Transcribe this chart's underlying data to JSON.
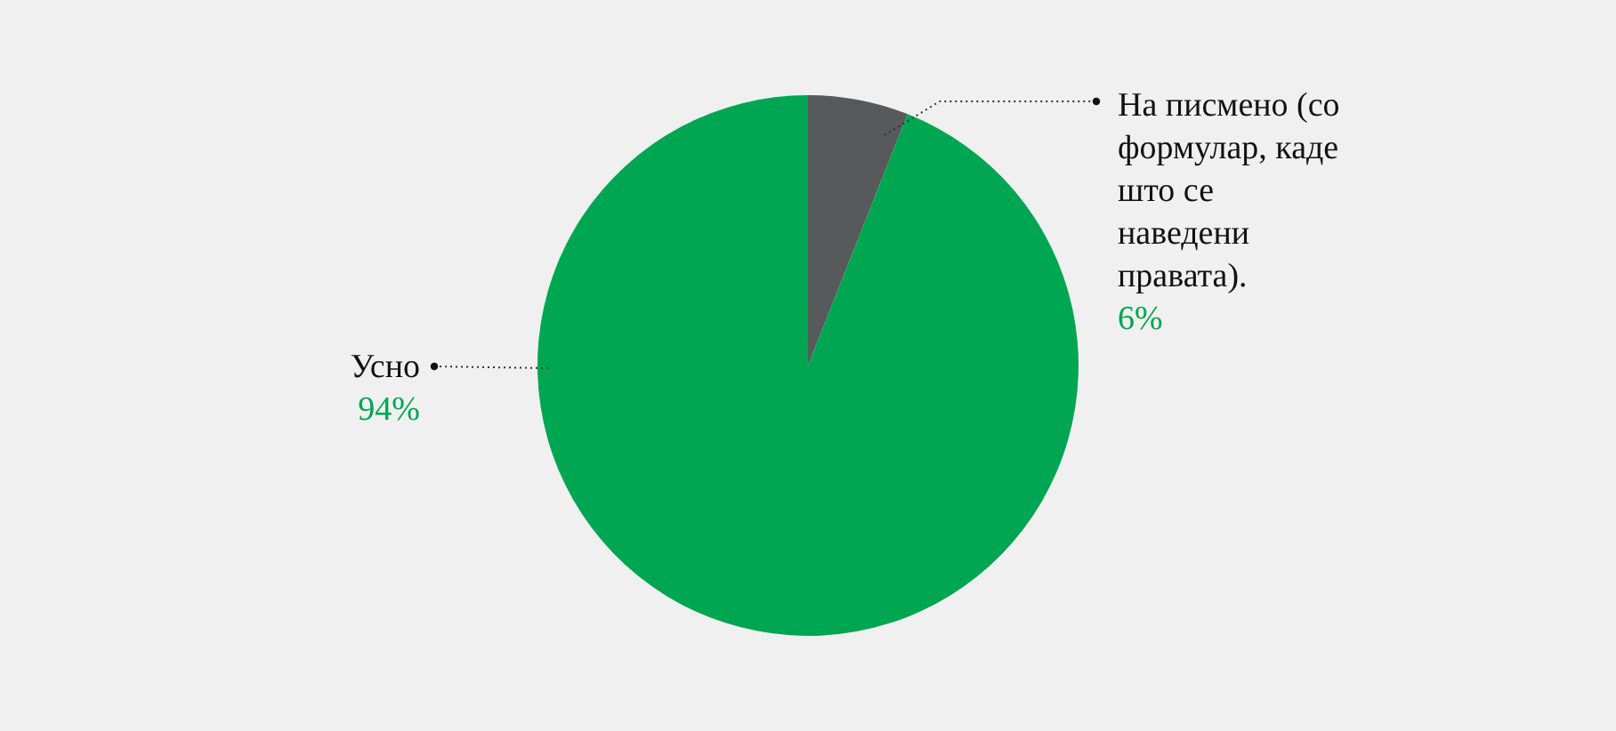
{
  "chart_data": {
    "type": "pie",
    "categories": [
      "На писмено (со формулар, каде што се наведени правата).",
      "Усно"
    ],
    "values": [
      6,
      94
    ],
    "colors": [
      "#58595b",
      "#00a651"
    ],
    "value_labels": [
      "6%",
      "94%"
    ]
  }
}
